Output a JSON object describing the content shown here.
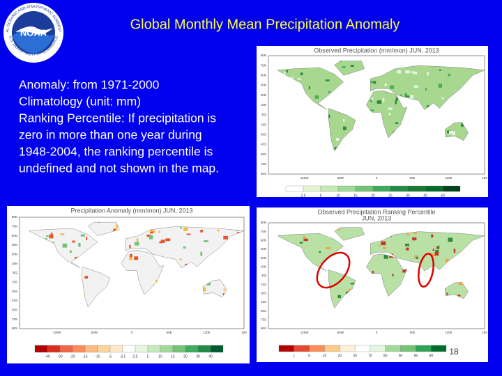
{
  "header": {
    "title": "Global Monthly Mean Precipitation Anomaly"
  },
  "logo": {
    "name": "NOAA",
    "ring_top": "NATIONAL OCEANIC AND ATMOSPHERIC ADMINISTRATION",
    "ring_bottom": "U.S. DEPARTMENT OF COMMERCE"
  },
  "description": {
    "lines": [
      "Anomaly: from 1971-2000",
      "Climatology (unit: mm)",
      "Ranking Percentile: If precipitation is",
      "zero in more than one year during",
      "1948-2004, the ranking percentile is",
      "undefined and not shown in the map."
    ]
  },
  "lat_labels": [
    "90N",
    "75N",
    "60N",
    "45N",
    "30N",
    "15N",
    "EQ",
    "15S",
    "30S",
    "45S",
    "60S",
    "75S",
    "90S"
  ],
  "lon_labels": [
    "120W",
    "60W",
    "0",
    "60E",
    "120E",
    "180"
  ],
  "maps": [
    {
      "title": [
        "Observed Precipitation (mm/mon) JUN, 2013"
      ],
      "colorbar": [
        "2.5",
        "5",
        "10",
        "15",
        "20",
        "25",
        "30",
        "40",
        "50"
      ]
    },
    {
      "title": [
        "Precipitation Anomaly (mm/mon) JUN, 2013"
      ],
      "colorbar": [
        "-40",
        "-30",
        "-20",
        "-15",
        "-10",
        "-5",
        "-2.5",
        "2.5",
        "5",
        "10",
        "15",
        "20",
        "30",
        "40"
      ]
    },
    {
      "title": [
        "Observed Precipitation Ranking Percentile",
        "JUN, 2013"
      ],
      "colorbar": [
        "1",
        "5",
        "10",
        "20",
        "30",
        "70",
        "80",
        "90",
        "95",
        "99"
      ]
    }
  ],
  "page_number": "18"
}
